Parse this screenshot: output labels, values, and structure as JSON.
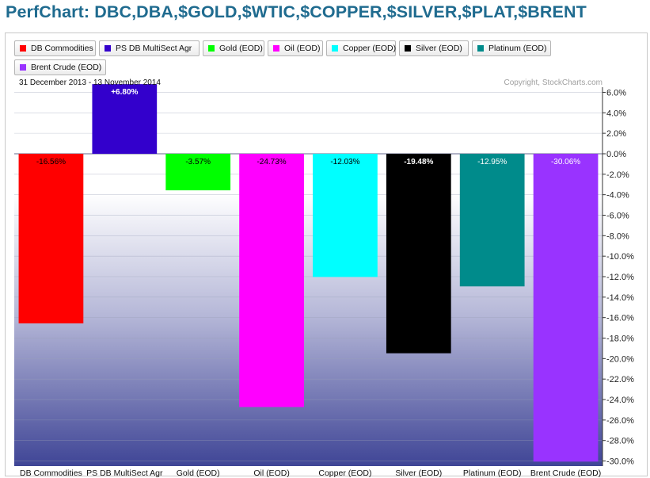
{
  "title": "PerfChart: DBC,DBA,$GOLD,$WTIC,$COPPER,$SILVER,$PLAT,$BRENT",
  "date_range": "31 December 2013 - 13 November 2014",
  "copyright": "Copyright, StockCharts.com",
  "colors": {
    "title": "#1f6b8f",
    "grid": "#9aa0b8",
    "bg_top": "#ffffff",
    "bg_bottom": "#3f4596"
  },
  "chart_data": {
    "type": "bar",
    "title": "PerfChart: DBC,DBA,$GOLD,$WTIC,$COPPER,$SILVER,$PLAT,$BRENT",
    "ylim": [
      -30.5,
      6.5
    ],
    "yticks": [
      6,
      4,
      2,
      0,
      -2,
      -4,
      -6,
      -8,
      -10,
      -12,
      -14,
      -16,
      -18,
      -20,
      -22,
      -24,
      -26,
      -28,
      -30
    ],
    "ytick_labels": [
      "6.0%",
      "4.0%",
      "2.0%",
      "0.0%",
      "-2.0%",
      "-4.0%",
      "-6.0%",
      "-8.0%",
      "-10.0%",
      "-12.0%",
      "-14.0%",
      "-16.0%",
      "-18.0%",
      "-20.0%",
      "-22.0%",
      "-24.0%",
      "-26.0%",
      "-28.0%",
      "-30.0%"
    ],
    "grid": true,
    "legend_position": "top-left",
    "categories": [
      "DB Commodities",
      "PS DB MultiSect  Agr",
      "Gold (EOD)",
      "Oil (EOD)",
      "Copper (EOD)",
      "Silver (EOD)",
      "Platinum (EOD)",
      "Brent Crude (EOD)"
    ],
    "values": [
      -16.56,
      6.8,
      -3.57,
      -24.73,
      -12.03,
      -19.48,
      -12.95,
      -30.06
    ],
    "value_labels": [
      "-16.56%",
      "+6.80%",
      "-3.57%",
      "-24.73%",
      "-12.03%",
      "-19.48%",
      "-12.95%",
      "-30.06%"
    ],
    "bar_colors": [
      "#ff0000",
      "#3300cc",
      "#00ff00",
      "#ff00ff",
      "#00ffff",
      "#000000",
      "#008b8b",
      "#9933ff"
    ],
    "label_colors": [
      "#000000",
      "#ffffff",
      "#000000",
      "#000000",
      "#000000",
      "#ffffff",
      "#ffffff",
      "#ffffff"
    ]
  }
}
